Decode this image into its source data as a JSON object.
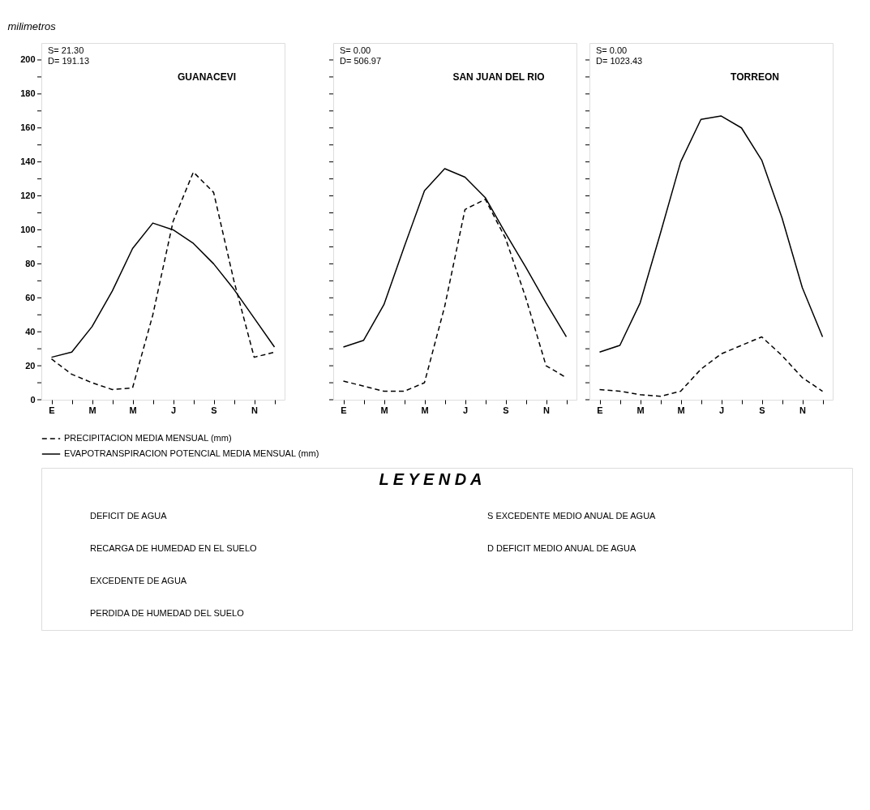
{
  "chart_data": [
    {
      "type": "line",
      "title": "GUANACEVI",
      "ylabel": "milimetros",
      "categories": [
        "E",
        null,
        "M",
        null,
        "M",
        null,
        "J",
        null,
        "S",
        null,
        "N",
        null
      ],
      "ylim": [
        0,
        210
      ],
      "yticks": [
        0,
        {
          "value": 10,
          "label": null
        },
        20,
        {
          "value": 30,
          "label": null
        },
        40,
        {
          "value": 50,
          "label": null
        },
        60,
        {
          "value": 70,
          "label": null
        },
        80,
        {
          "value": 90,
          "label": null
        },
        100,
        {
          "value": 110,
          "label": null
        },
        120,
        {
          "value": 130,
          "label": null
        },
        140,
        {
          "value": 150,
          "label": null
        },
        160,
        {
          "value": 170,
          "label": null
        },
        180,
        {
          "value": 190,
          "label": null
        },
        200
      ],
      "legend": "bottom",
      "annotations": [
        "S=   21.30",
        "D=  191.13"
      ],
      "series": [
        {
          "name": "PRECIPITACION MEDIA MENSUAL (mm)",
          "color": "#000000",
          "line_style": "dashed",
          "values": [
            24,
            15,
            10,
            6,
            7,
            50,
            105,
            134,
            122,
            70,
            25,
            28
          ]
        },
        {
          "name": "EVAPOTRANSPIRACION POTENCIAL MEDIA MENSUAL (mm)",
          "color": "#000000",
          "line_style": "solid",
          "values": [
            25,
            28,
            43,
            64,
            89,
            104,
            100,
            92,
            80,
            65,
            48,
            31
          ]
        }
      ]
    },
    {
      "type": "line",
      "title": "SAN JUAN DEL RIO",
      "categories": [
        "E",
        null,
        "M",
        null,
        "M",
        null,
        "J",
        null,
        "S",
        null,
        "N",
        null
      ],
      "ylim": [
        0,
        210
      ],
      "yticks": [
        0,
        {
          "value": 10,
          "label": null
        },
        20,
        {
          "value": 30,
          "label": null
        },
        40,
        {
          "value": 50,
          "label": null
        },
        60,
        {
          "value": 70,
          "label": null
        },
        80,
        {
          "value": 90,
          "label": null
        },
        100,
        {
          "value": 110,
          "label": null
        },
        120,
        {
          "value": 130,
          "label": null
        },
        140,
        {
          "value": 150,
          "label": null
        },
        160,
        {
          "value": 170,
          "label": null
        },
        180,
        {
          "value": 190,
          "label": null
        },
        200
      ],
      "tick_labels": "x",
      "annotations": [
        "S=      0.00",
        "D=  506.97"
      ],
      "series": [
        {
          "color": "#000000",
          "line_style": "dashed",
          "values": [
            11,
            8,
            5,
            5,
            10,
            55,
            112,
            118,
            95,
            60,
            20,
            13
          ]
        },
        {
          "color": "#000000",
          "line_style": "solid",
          "values": [
            31,
            35,
            56,
            90,
            123,
            136,
            131,
            119,
            98,
            78,
            57,
            37
          ]
        }
      ]
    },
    {
      "type": "line",
      "title": "TORREON",
      "categories": [
        "E",
        null,
        "M",
        null,
        "M",
        null,
        "J",
        null,
        "S",
        null,
        "N",
        null
      ],
      "ylim": [
        0,
        210
      ],
      "yticks": [
        0,
        {
          "value": 10,
          "label": null
        },
        20,
        {
          "value": 30,
          "label": null
        },
        40,
        {
          "value": 50,
          "label": null
        },
        60,
        {
          "value": 70,
          "label": null
        },
        80,
        {
          "value": 90,
          "label": null
        },
        100,
        {
          "value": 110,
          "label": null
        },
        120,
        {
          "value": 130,
          "label": null
        },
        140,
        {
          "value": 150,
          "label": null
        },
        160,
        {
          "value": 170,
          "label": null
        },
        180,
        {
          "value": 190,
          "label": null
        },
        200
      ],
      "tick_labels": "x",
      "annotations": [
        "S=      0.00",
        "D= 1023.43"
      ],
      "series": [
        {
          "color": "#000000",
          "line_style": "dashed",
          "values": [
            6,
            5,
            3,
            2,
            5,
            18,
            27,
            32,
            37,
            26,
            13,
            5
          ]
        },
        {
          "color": "#000000",
          "line_style": "solid",
          "values": [
            28,
            32,
            57,
            98,
            140,
            165,
            167,
            160,
            141,
            107,
            66,
            37
          ]
        }
      ]
    },
    {
      "type": "other",
      "title": "L E Y E N D A",
      "annotations": [
        "DEFICIT DE AGUA",
        "RECARGA DE HUMEDAD EN EL SUELO",
        "EXCEDENTE DE AGUA",
        "PERDIDA DE HUMEDAD DEL SUELO",
        "S    EXCEDENTE MEDIO ANUAL DE AGUA",
        "D    DEFICIT MEDIO ANUAL DE AGUA"
      ]
    }
  ]
}
